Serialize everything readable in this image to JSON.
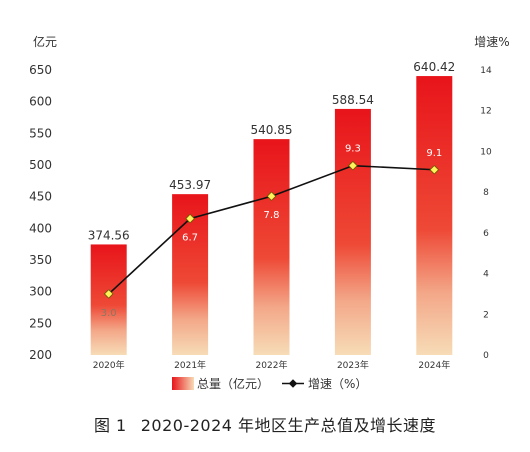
{
  "chart_data": {
    "type": "bar+line",
    "title": "2020-2024 年地区生产总值及增长速度",
    "figure_label": "图 1",
    "categories": [
      "2020年",
      "2021年",
      "2022年",
      "2023年",
      "2024年"
    ],
    "series": [
      {
        "name": "总量（亿元）",
        "type": "bar",
        "axis": "left",
        "values": [
          374.56,
          453.97,
          540.85,
          588.54,
          640.42
        ],
        "labels": [
          "374.56",
          "453.97",
          "540.85",
          "588.54",
          "640.42"
        ]
      },
      {
        "name": "增速（%）",
        "type": "line",
        "axis": "right",
        "values": [
          3.0,
          6.7,
          7.8,
          9.3,
          9.1
        ],
        "labels": [
          "3.0",
          "6.7",
          "7.8",
          "9.3",
          "9.1"
        ]
      }
    ],
    "y_left": {
      "label": "亿元",
      "ylim": [
        200,
        650
      ],
      "ticks": [
        "200",
        "250",
        "300",
        "350",
        "400",
        "450",
        "500",
        "550",
        "600",
        "650"
      ]
    },
    "y_right": {
      "label": "增速%",
      "ylim": [
        0,
        14
      ],
      "ticks": [
        "0",
        "2",
        "4",
        "6",
        "8",
        "10",
        "12",
        "14"
      ]
    },
    "legend_position": "bottom",
    "grid": false,
    "colors": {
      "bar_top": "#e8141a",
      "bar_mid": "#ef5540",
      "bar_bottom": "#f7dcb7",
      "line": "#111111",
      "marker_fill": "#fff25a",
      "marker_stroke": "#6b5a00",
      "axis_text": "#333333",
      "value_label_light": "#ffffff"
    }
  }
}
